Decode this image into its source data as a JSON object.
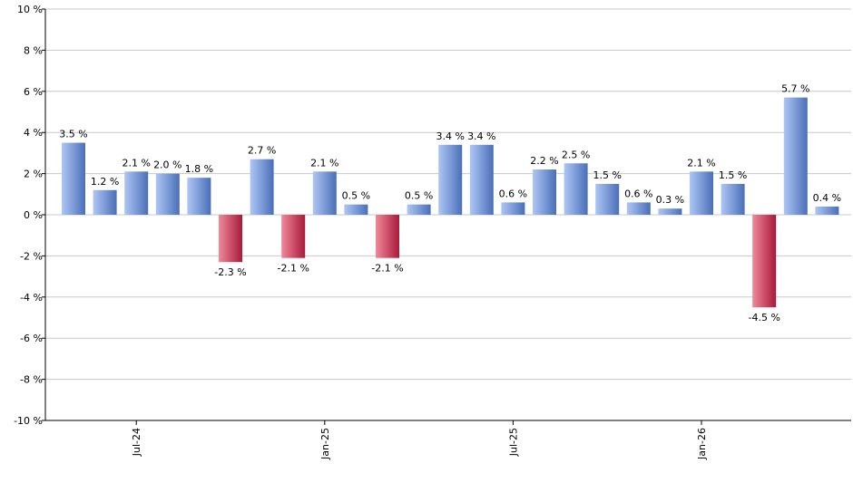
{
  "chart_data": {
    "type": "bar",
    "ylim": [
      -10,
      10
    ],
    "yticks": [
      10,
      8,
      6,
      4,
      2,
      0,
      -2,
      -4,
      -6,
      -8,
      -10
    ],
    "ytick_labels": [
      "10 %",
      "8 %",
      "6 %",
      "4 %",
      "2 %",
      "0 %",
      "-2 %",
      "-4 %",
      "-6 %",
      "-8 %",
      "-10 %"
    ],
    "grid": true,
    "values": [
      3.5,
      1.2,
      2.1,
      2.0,
      1.8,
      -2.3,
      2.7,
      -2.1,
      2.1,
      0.5,
      -2.1,
      0.5,
      3.4,
      3.4,
      0.6,
      2.2,
      2.5,
      1.5,
      0.6,
      0.3,
      2.1,
      1.5,
      -4.5,
      5.7,
      0.4
    ],
    "value_labels": [
      "3.5 %",
      "1.2 %",
      "2.1 %",
      "2.0 %",
      "1.8 %",
      "-2.3 %",
      "2.7 %",
      "-2.1 %",
      "2.1 %",
      "0.5 %",
      "-2.1 %",
      "0.5 %",
      "3.4 %",
      "3.4 %",
      "0.6 %",
      "2.2 %",
      "2.5 %",
      "1.5 %",
      "0.6 %",
      "0.3 %",
      "2.1 %",
      "1.5 %",
      "-4.5 %",
      "5.7 %",
      "0.4 %"
    ],
    "xtick_labels": [
      {
        "label": "Jul-24",
        "index": 2
      },
      {
        "label": "Jan-25",
        "index": 8
      },
      {
        "label": "Jul-25",
        "index": 14
      },
      {
        "label": "Jan-26",
        "index": 20
      }
    ],
    "colors": {
      "positive_light": "#aec6f5",
      "positive_dark": "#4a6fb8",
      "negative_light": "#f0899a",
      "negative_dark": "#a8193a",
      "grid": "#c8c8c8",
      "axis": "#000000"
    }
  }
}
